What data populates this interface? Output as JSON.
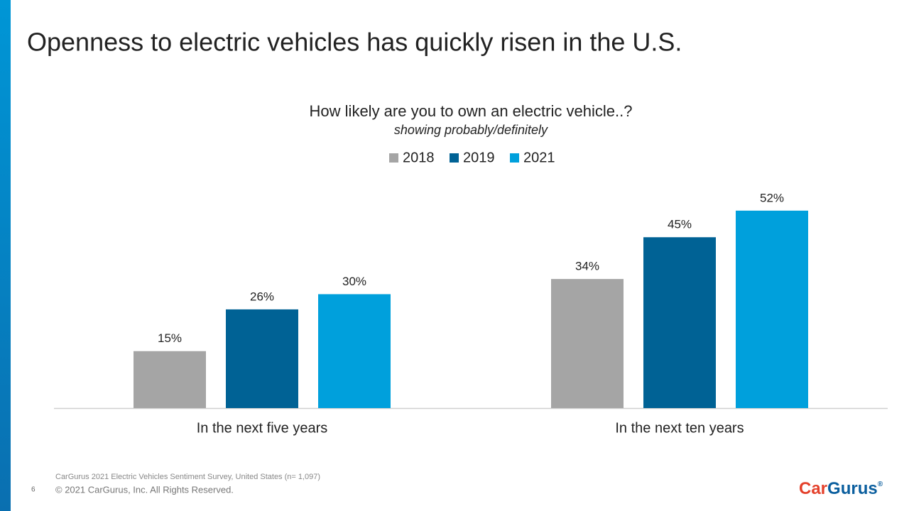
{
  "slide": {
    "title": "Openness to electric vehicles has quickly risen in the U.S.",
    "source": "CarGurus 2021 Electric Vehicles Sentiment Survey, United States (n= 1,097)",
    "page_number": "6",
    "copyright": "© 2021 CarGurus, Inc.  All Rights Reserved.",
    "logo": {
      "first": "Car",
      "second": "Gurus",
      "mark": "®"
    }
  },
  "chart_data": {
    "type": "bar",
    "title": "How likely are you to own an electric vehicle..?",
    "subtitle": "showing probably/definitely",
    "categories": [
      "In the next five years",
      "In the next ten years"
    ],
    "series": [
      {
        "name": "2018",
        "color": "#a5a5a5",
        "values": [
          15,
          34
        ],
        "value_labels": [
          "15%",
          "34%"
        ]
      },
      {
        "name": "2019",
        "color": "#006295",
        "values": [
          26,
          45
        ],
        "value_labels": [
          "26%",
          "45%"
        ]
      },
      {
        "name": "2021",
        "color": "#00a0dc",
        "values": [
          30,
          52
        ],
        "value_labels": [
          "30%",
          "52%"
        ]
      }
    ]
  }
}
